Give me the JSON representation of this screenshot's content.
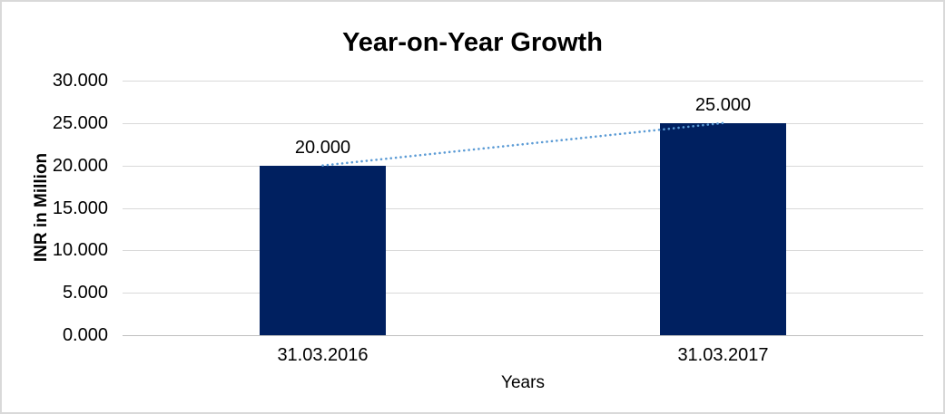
{
  "frame": {
    "background": "#FFFFFF",
    "border_color": "#D9D9D9"
  },
  "chart_data": {
    "type": "bar",
    "title": "Year-on-Year Growth",
    "xlabel": "Years",
    "ylabel": "INR in Million",
    "categories": [
      "31.03.2016",
      "31.03.2017"
    ],
    "values": [
      20,
      25
    ],
    "data_labels": [
      "20.000",
      "25.000"
    ],
    "y_ticks": [
      {
        "value": 0,
        "label": "0.000"
      },
      {
        "value": 5,
        "label": "5.000"
      },
      {
        "value": 10,
        "label": "10.000"
      },
      {
        "value": 15,
        "label": "15.000"
      },
      {
        "value": 20,
        "label": "20.000"
      },
      {
        "value": 25,
        "label": "25.000"
      },
      {
        "value": 30,
        "label": "30.000"
      }
    ],
    "ylim": [
      0,
      30
    ],
    "grid": true,
    "legend": "none",
    "bar_color": "#002060",
    "gridline_color": "#D9D9D9",
    "axis_line_color": "#BFBFBF",
    "text_color": "#000000",
    "trendline": {
      "type": "linear",
      "style": "dotted",
      "color": "#5B9BD5",
      "from_value": 20,
      "to_value": 25
    }
  }
}
